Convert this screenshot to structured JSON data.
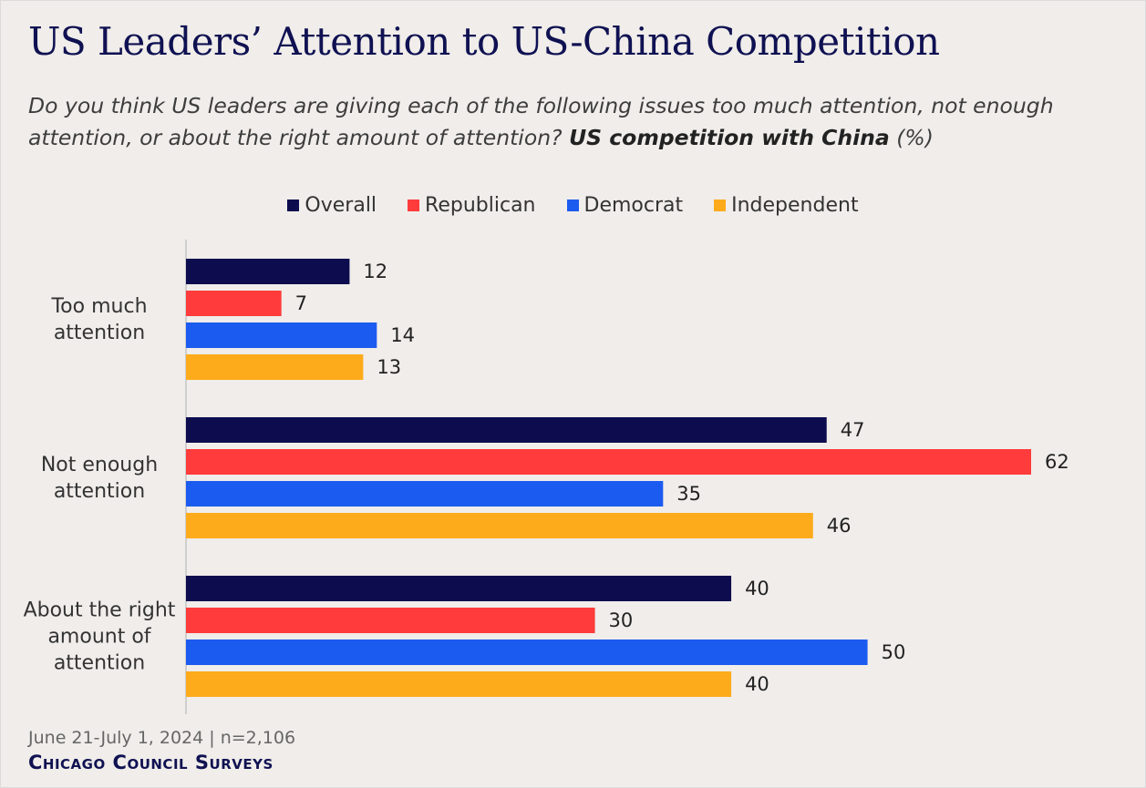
{
  "chart_data": {
    "type": "bar",
    "orientation": "horizontal",
    "title": "US Leaders’ Attention to US-China Competition",
    "subtitle": "Do you think US leaders are giving each of the following issues too much attention, not enough attention, or about the right amount of attention?",
    "subtitle_emphasis": "US competition with China",
    "subtitle_unit": "(%)",
    "categories": [
      "Too much attention",
      "Not enough attention",
      "About the right amount of attention"
    ],
    "series": [
      {
        "name": "Overall",
        "color": "#0c0c4e",
        "values": [
          12,
          47,
          40
        ]
      },
      {
        "name": "Republican",
        "color": "#ff3b3b",
        "values": [
          7,
          62,
          30
        ]
      },
      {
        "name": "Democrat",
        "color": "#1c5bef",
        "values": [
          14,
          35,
          50
        ]
      },
      {
        "name": "Independent",
        "color": "#fdab1b",
        "values": [
          13,
          46,
          40
        ]
      }
    ],
    "legend": "top",
    "note": "June 21-July 1, 2024 | n=2,106",
    "source": "Chicago Council Surveys"
  }
}
